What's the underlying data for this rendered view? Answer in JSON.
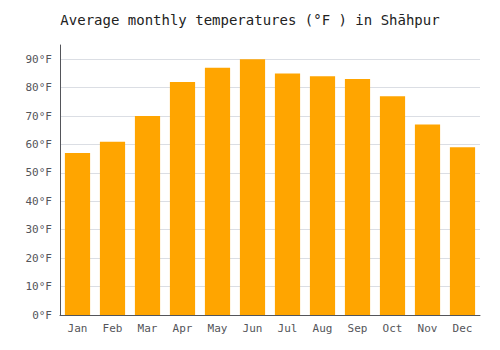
{
  "chart_data": {
    "type": "bar",
    "title": "Average monthly temperatures (°F ) in Shāhpur",
    "categories": [
      "Jan",
      "Feb",
      "Mar",
      "Apr",
      "May",
      "Jun",
      "Jul",
      "Aug",
      "Sep",
      "Oct",
      "Nov",
      "Dec"
    ],
    "values": [
      57,
      61,
      70,
      82,
      87,
      90,
      85,
      84,
      83,
      77,
      67,
      59
    ],
    "color": "#FFA500",
    "ylim": [
      0,
      95
    ],
    "yticks": [
      {
        "value": 0,
        "label": "0°F"
      },
      {
        "value": 10,
        "label": "10°F"
      },
      {
        "value": 20,
        "label": "20°F"
      },
      {
        "value": 30,
        "label": "30°F"
      },
      {
        "value": 40,
        "label": "40°F"
      },
      {
        "value": 50,
        "label": "50°F"
      },
      {
        "value": 60,
        "label": "60°F"
      },
      {
        "value": 70,
        "label": "70°F"
      },
      {
        "value": 80,
        "label": "80°F"
      },
      {
        "value": 90,
        "label": "90°F"
      }
    ],
    "grid": true
  }
}
